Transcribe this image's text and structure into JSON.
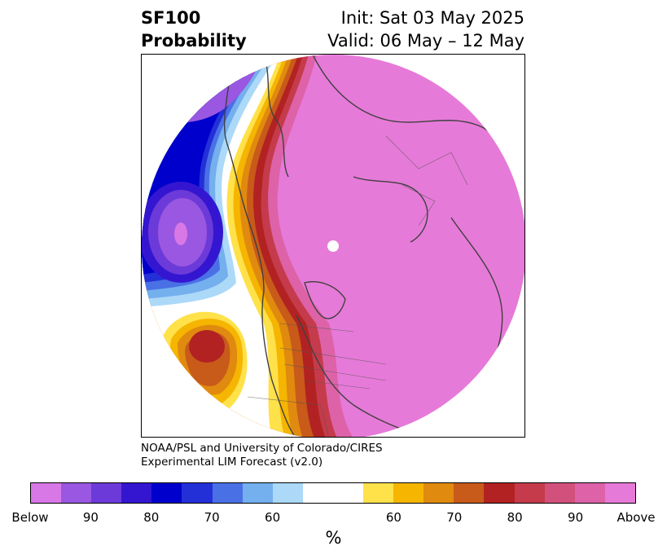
{
  "title": {
    "left_line1": "SF100",
    "left_line2": "Probability",
    "right_line1": "Init: Sat 03 May 2025",
    "right_line2": "Valid: 06 May – 12 May"
  },
  "credit": {
    "line1": "NOAA/PSL and University of Colorado/CIRES",
    "line2": "Experimental LIM Forecast (v2.0)"
  },
  "map": {
    "projection": "polar",
    "pattern": "Above-normal probability dominates Arctic, Russia, Europe, Greenland and eastern North America; below-normal over NE Pacific and Alaska; above over subtropical Pacific"
  },
  "colorbar": {
    "colors": [
      "#d877e6",
      "#9a57e1",
      "#6c3ad8",
      "#3416d1",
      "#0000cc",
      "#2330d8",
      "#4a70e6",
      "#74afee",
      "#acd9f8",
      "#ffffff",
      "#ffe14a",
      "#f5b500",
      "#e08a10",
      "#c85a1a",
      "#b22222",
      "#c53b4b",
      "#d2517c",
      "#dd62a8",
      "#e67ad8"
    ],
    "tick_labels": [
      "Below",
      "90",
      "80",
      "70",
      "60",
      "60",
      "70",
      "80",
      "90",
      "Above"
    ],
    "unit": "%"
  }
}
